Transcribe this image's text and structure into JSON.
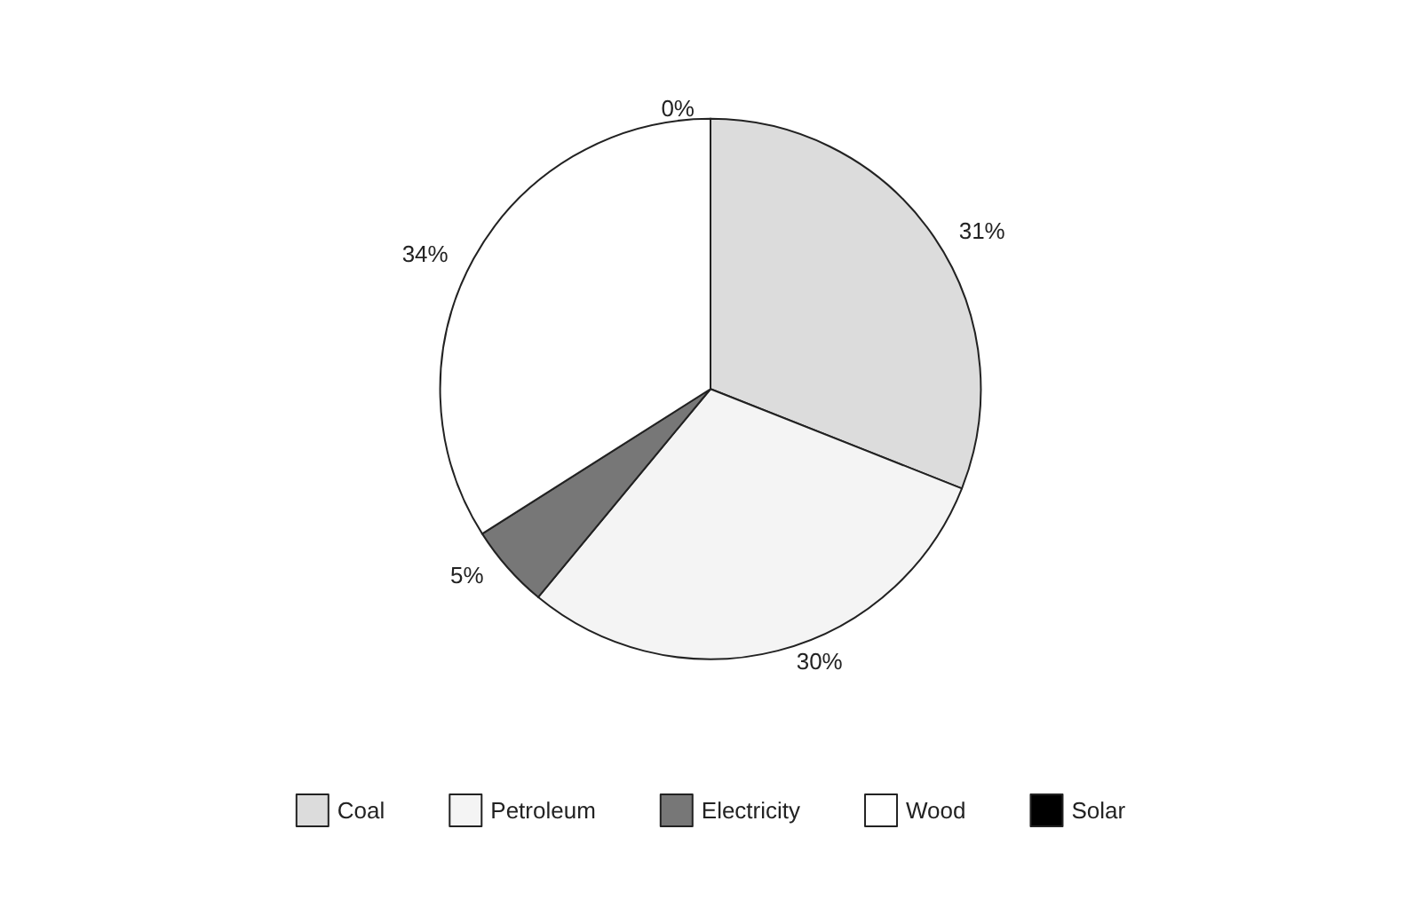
{
  "chart_data": {
    "type": "pie",
    "categories": [
      "Coal",
      "Petroleum",
      "Electricity",
      "Wood",
      "Solar"
    ],
    "values": [
      31,
      30,
      5,
      34,
      0
    ],
    "value_labels": [
      "31%",
      "30%",
      "5%",
      "34%",
      "0%"
    ],
    "colors": [
      "#dcdcdc",
      "#f4f4f4",
      "#777777",
      "#ffffff",
      "#000000"
    ],
    "legend": "bottom"
  }
}
